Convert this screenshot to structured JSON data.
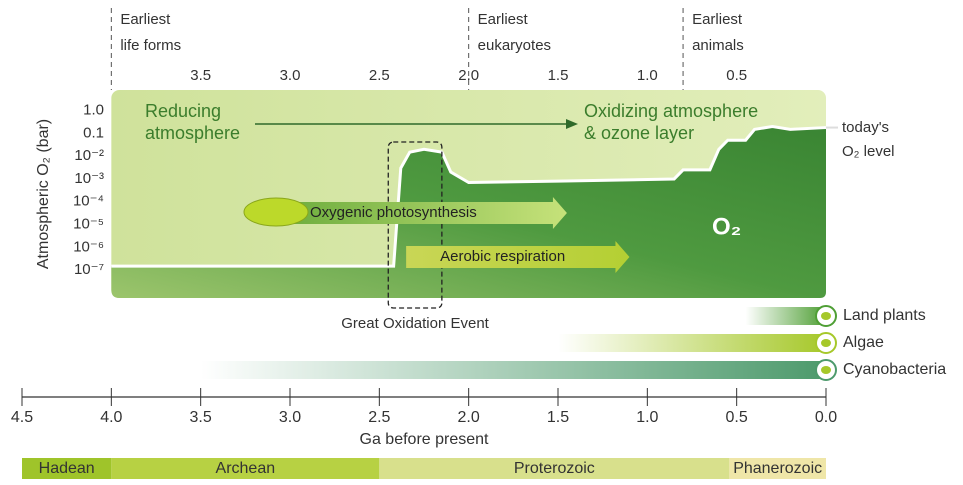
{
  "chart_data": {
    "type": "line",
    "ylabel": "Atmospheric O₂ (bar)",
    "xlabel": "Ga before present",
    "log_y": true,
    "xlim": [
      4.5,
      0
    ],
    "ylim": [
      6e-09,
      8
    ],
    "xticks": [
      4.5,
      {
        "value": 4,
        "label": "4.0"
      },
      3.5,
      {
        "value": 3,
        "label": "3.0"
      },
      2.5,
      {
        "value": 2,
        "label": "2.0"
      },
      1.5,
      {
        "value": 1,
        "label": "1.0"
      },
      0.5,
      {
        "value": 0,
        "label": "0.0"
      }
    ],
    "x2ticks": [
      3.5,
      {
        "value": 3,
        "label": "3.0"
      },
      2.5,
      {
        "value": 2,
        "label": "2.0"
      },
      1.5,
      {
        "value": 1,
        "label": "1.0"
      },
      0.5
    ],
    "yticks": [
      {
        "value": 1,
        "label": "1.0"
      },
      0.1,
      {
        "value": 0.01,
        "label": "10⁻²"
      },
      {
        "value": 0.001,
        "label": "10⁻³"
      },
      {
        "value": 0.0001,
        "label": "10⁻⁴"
      },
      {
        "value": 1e-05,
        "label": "10⁻⁵"
      },
      {
        "value": 1e-06,
        "label": "10⁻⁶"
      },
      {
        "value": 1e-07,
        "label": "10⁻⁷"
      }
    ],
    "series": [
      {
        "color": "#ffffff",
        "fill": "#3f8c38",
        "x": [
          4.0,
          2.42,
          2.38,
          2.33,
          2.25,
          2.15,
          2.1,
          2.0,
          1.5,
          0.85,
          0.8,
          0.65,
          0.6,
          0.55,
          0.45,
          0.4,
          0.3,
          0.2,
          0.0
        ],
        "values": [
          1.5e-07,
          1.5e-07,
          0.003,
          0.015,
          0.02,
          0.015,
          0.002,
          0.0007,
          0.0008,
          0.001,
          0.0025,
          0.0025,
          0.02,
          0.05,
          0.05,
          0.15,
          0.2,
          0.15,
          0.18
        ]
      }
    ],
    "annotations": {
      "reducing": [
        "Reducing",
        "atmosphere"
      ],
      "oxidizing": [
        "Oxidizing atmosphere",
        "& ozone layer"
      ],
      "o2": "O₂",
      "today": [
        "today's",
        "O₂ level"
      ]
    },
    "milestones": [
      {
        "x": 4.0,
        "label": [
          "Earliest",
          "life forms"
        ]
      },
      {
        "x": 2.0,
        "label": [
          "Earliest",
          "eukaryotes"
        ]
      },
      {
        "x": 0.8,
        "label": [
          "Earliest",
          "animals"
        ]
      }
    ],
    "processes": [
      {
        "label": "Oxygenic photosynthesis",
        "start": 3.0,
        "end": 1.45
      },
      {
        "label": "Aerobic respiration",
        "start": 2.35,
        "end": 1.1
      }
    ],
    "great_oxidation_event": {
      "label": "Great Oxidation Event",
      "start": 2.45,
      "end": 2.15
    },
    "organisms": [
      {
        "name": "Land plants",
        "start": 0.45,
        "end": 0,
        "color": "#4f9f35"
      },
      {
        "name": "Algae",
        "start": 1.5,
        "end": 0,
        "color": "#a6c82a"
      },
      {
        "name": "Cyanobacteria",
        "start": 3.5,
        "end": 0,
        "color": "#4d9a6c"
      }
    ],
    "eons": [
      {
        "name": "Hadean",
        "start": 4.5,
        "end": 4.0,
        "color": "#9fc42a"
      },
      {
        "name": "Archean",
        "start": 4.0,
        "end": 2.5,
        "color": "#b7d143"
      },
      {
        "name": "Proterozoic",
        "start": 2.5,
        "end": 0.541,
        "color": "#d8e08c"
      },
      {
        "name": "Phanerozoic",
        "start": 0.541,
        "end": 0,
        "color": "#efe6a8"
      }
    ]
  }
}
